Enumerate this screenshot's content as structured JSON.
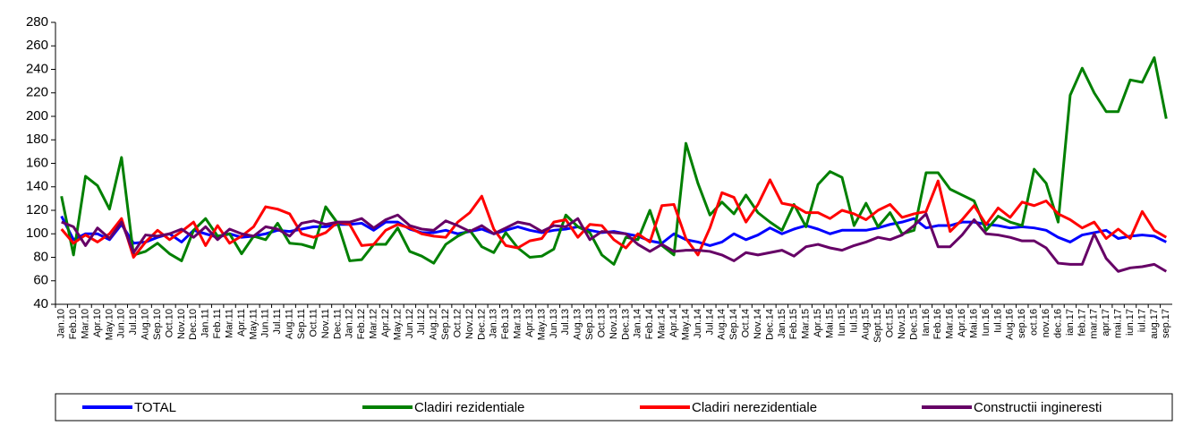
{
  "chart_data": {
    "type": "line",
    "categories": [
      "Jan.10",
      "Feb.10",
      "Mar.10",
      "Apr.10",
      "May.10",
      "Jun.10",
      "Jul.10",
      "Aug.10",
      "Sep.10",
      "Oct.10",
      "Nov.10",
      "Dec.10",
      "Jan.11",
      "Feb.11",
      "Mar.11",
      "Apr.11",
      "May.11",
      "Jun.11",
      "Jul.11",
      "Aug.11",
      "Sep.11",
      "Oct.11",
      "Nov.11",
      "Dec.11",
      "Jan.12",
      "Feb.12",
      "Mar.12",
      "Apr.12",
      "May.12",
      "Jun.12",
      "Jul.12",
      "Aug.12",
      "Sep.12",
      "Oct.12",
      "Nov.12",
      "Dec.12",
      "Jan.13",
      "Feb.13",
      "Mar.13",
      "Apr.13",
      "May.13",
      "Jun.13",
      "Jul.13",
      "Aug.13",
      "Sep.13",
      "Oct.13",
      "Nov.13",
      "Dec.13",
      "Jan.14",
      "Feb.14",
      "Mar.14",
      "Apr.14",
      "May.14",
      "Jun.14",
      "Jul.14",
      "Aug.14",
      "Sep.14",
      "Oct.14",
      "Nov.14",
      "Dec.14",
      "Jan.15",
      "Feb.15",
      "Mar.15",
      "Apr.15",
      "Mai.15",
      "Iun.15",
      "Iul.15",
      "Aug.15",
      "Sept.15",
      "Oct.15",
      "Nov.15",
      "Dec.15",
      "Ian.16",
      "Feb.16",
      "Mar.16",
      "Apr.16",
      "Mai.16",
      "Iun.16",
      "Iul.16",
      "Aug.16",
      "sep.16",
      "oct.16",
      "nov.16",
      "dec.16",
      "ian.17",
      "feb.17",
      "mar.17",
      "apr.17",
      "mai.17",
      "iun.17",
      "iul.17",
      "aug.17",
      "sep.17"
    ],
    "series": [
      {
        "name": "TOTAL",
        "color": "#0000ff",
        "values": [
          115,
          95,
          100,
          100,
          95,
          108,
          92,
          93,
          97,
          100,
          93,
          103,
          100,
          97,
          100,
          97,
          98,
          100,
          103,
          102,
          104,
          106,
          106,
          108,
          108,
          109,
          103,
          110,
          110,
          104,
          101,
          101,
          103,
          100,
          102,
          104,
          100,
          103,
          106,
          103,
          101,
          103,
          104,
          106,
          103,
          101,
          102,
          100,
          98,
          94,
          92,
          100,
          95,
          93,
          90,
          93,
          100,
          95,
          99,
          105,
          100,
          104,
          107,
          104,
          100,
          103,
          103,
          103,
          105,
          108,
          110,
          113,
          105,
          107,
          107,
          110,
          110,
          108,
          107,
          105,
          106,
          105,
          103,
          97,
          93,
          99,
          101,
          103,
          96,
          98,
          99,
          98,
          93
        ]
      },
      {
        "name": "Cladiri rezidentiale",
        "color": "#008000",
        "values": [
          132,
          82,
          149,
          141,
          121,
          165,
          82,
          85,
          92,
          83,
          77,
          103,
          113,
          98,
          100,
          83,
          98,
          95,
          109,
          92,
          91,
          88,
          123,
          109,
          77,
          78,
          91,
          91,
          105,
          85,
          81,
          75,
          91,
          98,
          103,
          89,
          84,
          101,
          88,
          80,
          81,
          87,
          116,
          106,
          101,
          82,
          74,
          97,
          95,
          120,
          90,
          82,
          177,
          143,
          116,
          127,
          117,
          133,
          118,
          110,
          103,
          125,
          106,
          142,
          153,
          148,
          107,
          126,
          106,
          118,
          100,
          103,
          152,
          152,
          138,
          133,
          128,
          103,
          115,
          110,
          107,
          155,
          143,
          110,
          218,
          241,
          220,
          204,
          204,
          231,
          229,
          250,
          198
        ]
      },
      {
        "name": "Cladiri nerezidentiale",
        "color": "#ff0000",
        "values": [
          104,
          92,
          99,
          93,
          100,
          113,
          80,
          93,
          103,
          95,
          102,
          110,
          90,
          107,
          92,
          98,
          106,
          123,
          121,
          117,
          100,
          97,
          101,
          110,
          108,
          90,
          91,
          103,
          108,
          105,
          100,
          98,
          97,
          110,
          118,
          132,
          104,
          90,
          88,
          94,
          96,
          110,
          112,
          97,
          108,
          107,
          95,
          88,
          100,
          93,
          124,
          125,
          96,
          82,
          105,
          135,
          131,
          110,
          125,
          146,
          126,
          124,
          118,
          118,
          113,
          120,
          117,
          112,
          120,
          125,
          114,
          117,
          119,
          145,
          102,
          112,
          124,
          108,
          122,
          114,
          127,
          124,
          128,
          117,
          112,
          105,
          110,
          96,
          104,
          96,
          119,
          103,
          97
        ]
      },
      {
        "name": "Constructii ingineresti",
        "color": "#660066",
        "values": [
          110,
          106,
          90,
          105,
          96,
          110,
          84,
          99,
          98,
          100,
          104,
          97,
          106,
          95,
          104,
          100,
          98,
          106,
          104,
          98,
          109,
          111,
          108,
          110,
          110,
          113,
          105,
          112,
          116,
          107,
          104,
          103,
          111,
          107,
          102,
          107,
          100,
          105,
          110,
          108,
          102,
          107,
          106,
          113,
          95,
          102,
          101,
          100,
          91,
          85,
          91,
          85,
          86,
          86,
          85,
          82,
          77,
          84,
          82,
          84,
          86,
          81,
          89,
          91,
          88,
          86,
          90,
          93,
          97,
          95,
          99,
          107,
          117,
          89,
          89,
          99,
          112,
          100,
          99,
          97,
          94,
          94,
          88,
          75,
          74,
          74,
          100,
          79,
          68,
          71,
          72,
          74,
          68
        ]
      }
    ],
    "ylim": [
      40,
      280
    ],
    "yticks": [
      40,
      60,
      80,
      100,
      120,
      140,
      160,
      180,
      200,
      220,
      240,
      260,
      280
    ],
    "grid": false,
    "legend": "bottom"
  }
}
